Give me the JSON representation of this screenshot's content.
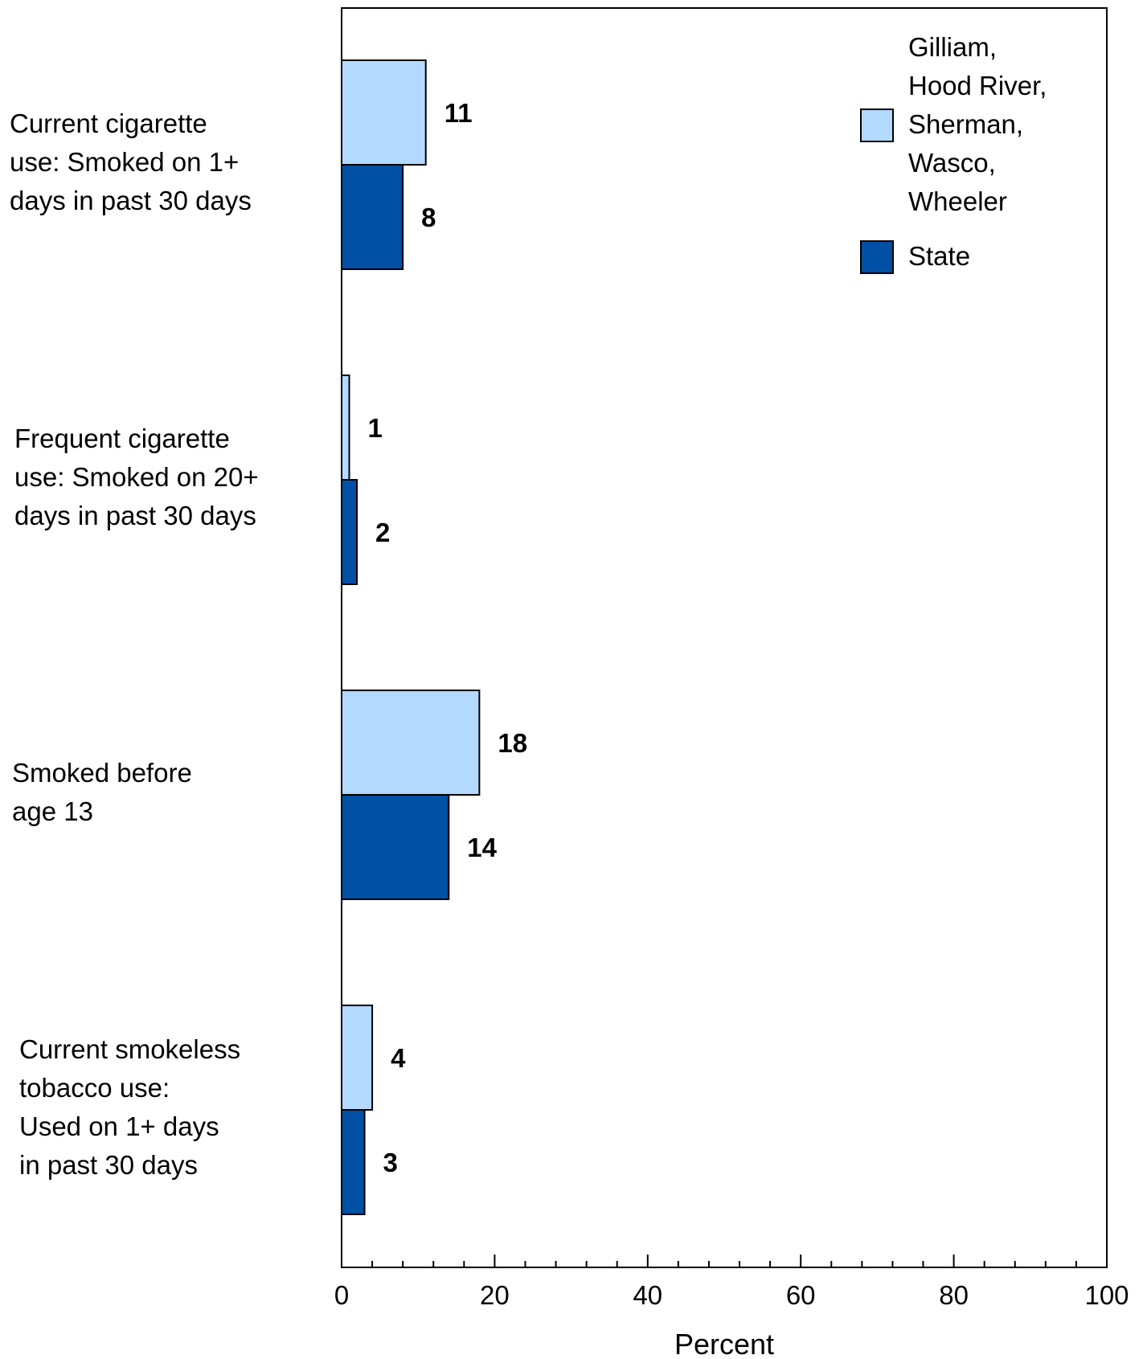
{
  "chart_data": {
    "type": "bar",
    "orientation": "horizontal",
    "categories": [
      "Current cigarette use: Smoked on 1+ days in past 30 days",
      "Frequent cigarette use: Smoked on 20+ days in past 30 days",
      "Smoked before age 13",
      "Current smokeless tobacco use: Used on 1+ days in past 30 days"
    ],
    "category_lines": [
      [
        "Current cigarette",
        "use: Smoked on 1+",
        "days in past 30 days"
      ],
      [
        "Frequent cigarette",
        "use: Smoked on 20+",
        "days in past 30 days"
      ],
      [
        "Smoked before",
        "age 13"
      ],
      [
        "Current smokeless",
        "tobacco use:",
        "Used on 1+ days",
        "in past 30 days"
      ]
    ],
    "series": [
      {
        "name": "Gilliam, Hood River, Sherman, Wasco, Wheeler",
        "legend_lines": [
          "Gilliam,",
          "Hood River,",
          "Sherman,",
          "Wasco,",
          "Wheeler"
        ],
        "values": [
          11,
          1,
          18,
          4
        ],
        "color": "#b3d9ff"
      },
      {
        "name": "State",
        "legend_lines": [
          "State"
        ],
        "values": [
          8,
          2,
          14,
          3
        ],
        "color": "#0050a5"
      }
    ],
    "xlabel": "Percent",
    "ylabel": "",
    "xlim": [
      0,
      100
    ],
    "xticks": [
      0,
      20,
      40,
      60,
      80,
      100
    ],
    "minor_tick_step": 4,
    "grid": false,
    "legend_position": "top-right"
  }
}
